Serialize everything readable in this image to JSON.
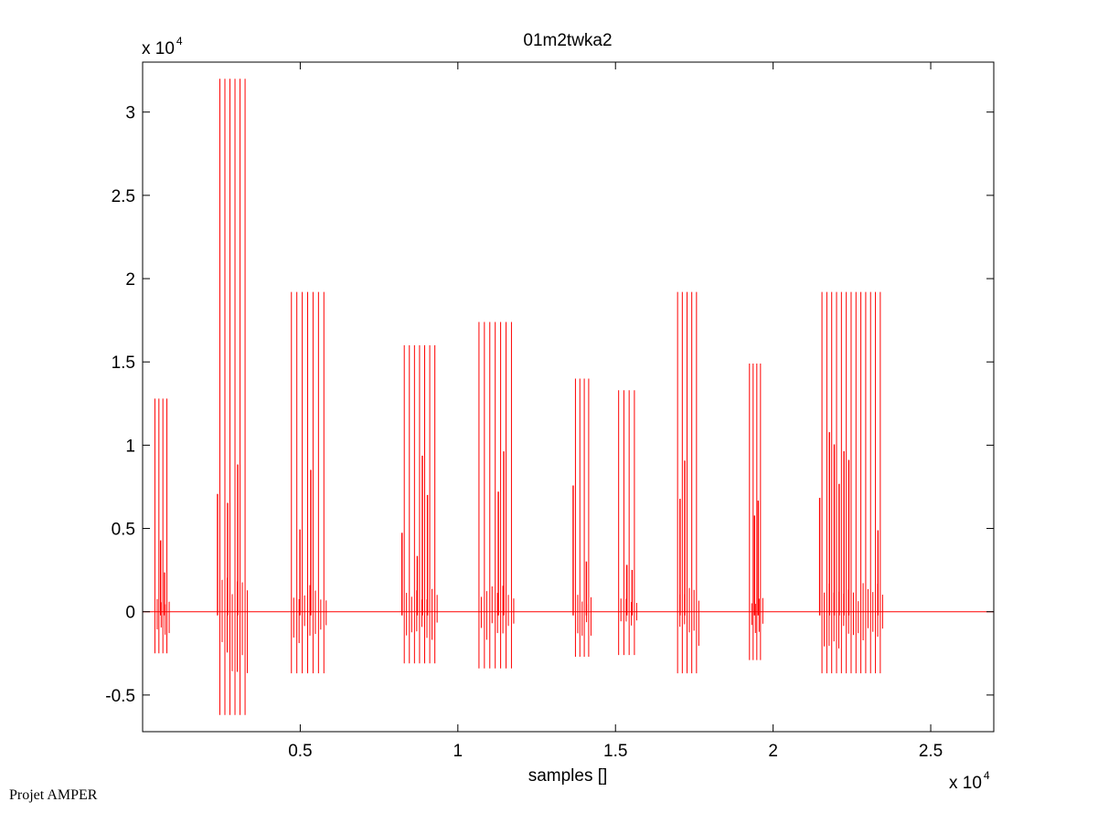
{
  "footer_text": "Projet AMPER",
  "chart_data": {
    "type": "line",
    "title": "01m2twka2",
    "xlabel": "samples []",
    "ylabel": "",
    "x_multiplier_label": "x 10",
    "x_multiplier_exp": "4",
    "y_multiplier_label": "x 10",
    "y_multiplier_exp": "4",
    "xlim": [
      0,
      2.7
    ],
    "ylim": [
      -0.72,
      3.3
    ],
    "x_ticks": [
      0.5,
      1,
      1.5,
      2,
      2.5
    ],
    "x_tick_labels": [
      "0.5",
      "1",
      "1.5",
      "2",
      "2.5"
    ],
    "y_ticks": [
      -0.5,
      0,
      0.5,
      1,
      1.5,
      2,
      2.5,
      3
    ],
    "y_tick_labels": [
      "-0.5",
      "0",
      "0.5",
      "1",
      "1.5",
      "2",
      "2.5",
      "3"
    ],
    "grid": false,
    "line_color": "#ff0000",
    "series": [
      {
        "bursts": [
          {
            "x_start": 0.039,
            "x_end": 0.077,
            "count": 4,
            "y_max": 1.28,
            "y_min": -0.25
          },
          {
            "x_start": 0.245,
            "x_end": 0.325,
            "count": 6,
            "y_max": 3.2,
            "y_min": -0.62
          },
          {
            "x_start": 0.472,
            "x_end": 0.575,
            "count": 7,
            "y_max": 1.92,
            "y_min": -0.37
          },
          {
            "x_start": 0.83,
            "x_end": 0.927,
            "count": 7,
            "y_max": 1.6,
            "y_min": -0.31
          },
          {
            "x_start": 1.067,
            "x_end": 1.17,
            "count": 7,
            "y_max": 1.74,
            "y_min": -0.34
          },
          {
            "x_start": 1.373,
            "x_end": 1.415,
            "count": 4,
            "y_max": 1.4,
            "y_min": -0.27
          },
          {
            "x_start": 1.51,
            "x_end": 1.56,
            "count": 4,
            "y_max": 1.33,
            "y_min": -0.26
          },
          {
            "x_start": 1.697,
            "x_end": 1.757,
            "count": 5,
            "y_max": 1.92,
            "y_min": -0.37
          },
          {
            "x_start": 1.925,
            "x_end": 1.96,
            "count": 4,
            "y_max": 1.49,
            "y_min": -0.29
          },
          {
            "x_start": 2.155,
            "x_end": 2.34,
            "count": 13,
            "y_max": 1.92,
            "y_min": -0.37
          }
        ]
      }
    ]
  }
}
